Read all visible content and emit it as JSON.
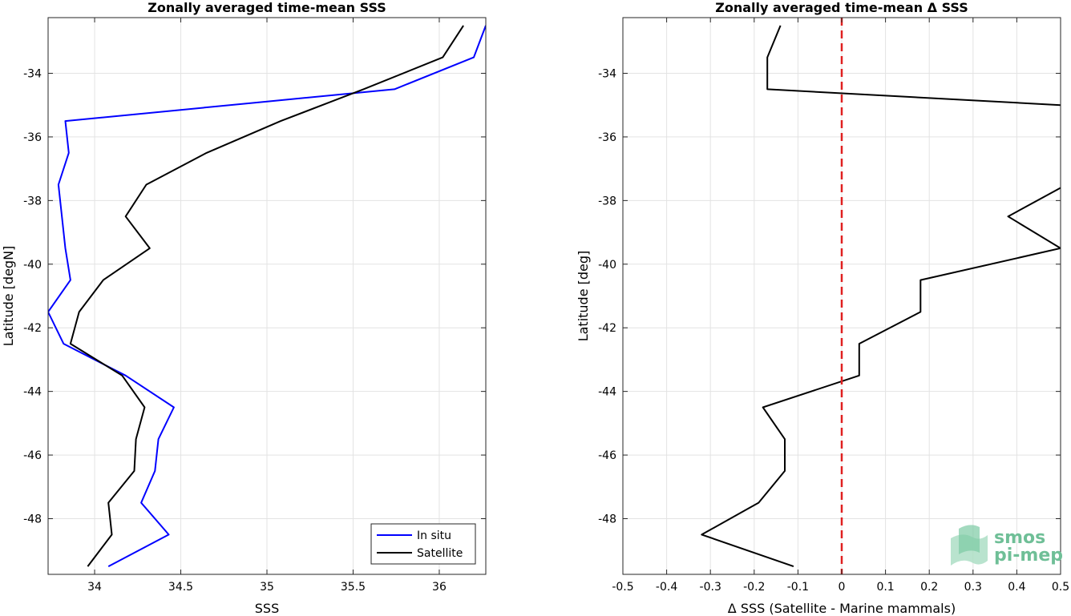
{
  "chart_data": [
    {
      "type": "line",
      "title": "Zonally averaged time-mean SSS",
      "xlabel": "SSS",
      "ylabel": "Latitude [degN]",
      "xlim": [
        33.73,
        36.27
      ],
      "ylim": [
        -49.75,
        -32.25
      ],
      "xticks": [
        34,
        34.5,
        35,
        35.5,
        36
      ],
      "xtick_labels": [
        "34",
        "34.5",
        "35",
        "35.5",
        "36"
      ],
      "yticks": [
        -48,
        -46,
        -44,
        -42,
        -40,
        -38,
        -36,
        -34
      ],
      "ytick_labels": [
        "-48",
        "-46",
        "-44",
        "-42",
        "-40",
        "-38",
        "-36",
        "-34"
      ],
      "grid": true,
      "legend_position": "bottom-right",
      "series": [
        {
          "name": "In situ",
          "color": "#0000ff",
          "points": [
            [
              34.08,
              -49.5
            ],
            [
              34.43,
              -48.5
            ],
            [
              34.27,
              -47.5
            ],
            [
              34.35,
              -46.5
            ],
            [
              34.37,
              -45.5
            ],
            [
              34.46,
              -44.5
            ],
            [
              34.18,
              -43.5
            ],
            [
              33.82,
              -42.5
            ],
            [
              33.73,
              -41.5
            ],
            [
              33.86,
              -40.5
            ],
            [
              33.83,
              -39.5
            ],
            [
              33.81,
              -38.5
            ],
            [
              33.79,
              -37.5
            ],
            [
              33.85,
              -36.5
            ],
            [
              33.83,
              -35.5
            ],
            [
              35.74,
              -34.5
            ],
            [
              36.2,
              -33.5
            ],
            [
              36.27,
              -32.5
            ]
          ]
        },
        {
          "name": "Satellite",
          "color": "#000000",
          "points": [
            [
              33.96,
              -49.5
            ],
            [
              34.1,
              -48.5
            ],
            [
              34.08,
              -47.5
            ],
            [
              34.23,
              -46.5
            ],
            [
              34.24,
              -45.5
            ],
            [
              34.29,
              -44.5
            ],
            [
              34.16,
              -43.5
            ],
            [
              33.86,
              -42.5
            ],
            [
              33.91,
              -41.5
            ],
            [
              34.05,
              -40.5
            ],
            [
              34.32,
              -39.5
            ],
            [
              34.18,
              -38.5
            ],
            [
              34.3,
              -37.5
            ],
            [
              34.65,
              -36.5
            ],
            [
              35.08,
              -35.5
            ],
            [
              35.56,
              -34.5
            ],
            [
              36.02,
              -33.5
            ],
            [
              36.14,
              -32.5
            ]
          ]
        }
      ]
    },
    {
      "type": "line",
      "title": "Zonally averaged time-mean Δ SSS",
      "xlabel": "Δ SSS (Satellite - Marine mammals)",
      "ylabel": "Latitude [deg]",
      "xlim": [
        -0.5,
        0.5
      ],
      "ylim": [
        -49.75,
        -32.25
      ],
      "xticks": [
        -0.5,
        -0.4,
        -0.3,
        -0.2,
        -0.1,
        0,
        0.1,
        0.2,
        0.3,
        0.4,
        0.5
      ],
      "xtick_labels": [
        "-0.5",
        "-0.4",
        "-0.3",
        "-0.2",
        "-0.1",
        "0",
        "0.1",
        "0.2",
        "0.3",
        "0.4",
        "0.5"
      ],
      "yticks": [
        -48,
        -46,
        -44,
        -42,
        -40,
        -38,
        -36,
        -34
      ],
      "ytick_labels": [
        "-48",
        "-46",
        "-44",
        "-42",
        "-40",
        "-38",
        "-36",
        "-34"
      ],
      "grid": true,
      "reference_line": {
        "x": 0,
        "color": "#e02020",
        "style": "dashed"
      },
      "series": [
        {
          "color": "#000000",
          "points": [
            [
              -0.11,
              -49.5
            ],
            [
              -0.32,
              -48.5
            ],
            [
              -0.19,
              -47.5
            ],
            [
              -0.13,
              -46.5
            ],
            [
              -0.13,
              -45.5
            ],
            [
              -0.18,
              -44.5
            ],
            [
              0.04,
              -43.5
            ],
            [
              0.04,
              -42.5
            ],
            [
              0.18,
              -41.5
            ],
            [
              0.18,
              -40.5
            ],
            [
              0.5,
              -39.5
            ],
            [
              0.38,
              -38.5
            ],
            [
              0.5,
              -37.6
            ]
          ]
        },
        {
          "color": "#000000",
          "points": [
            [
              0.5,
              -35.0
            ],
            [
              -0.17,
              -34.5
            ],
            [
              -0.17,
              -33.5
            ],
            [
              -0.14,
              -32.5
            ]
          ]
        }
      ]
    }
  ],
  "watermark": {
    "line1": "smos",
    "line2": "pi-mep"
  }
}
